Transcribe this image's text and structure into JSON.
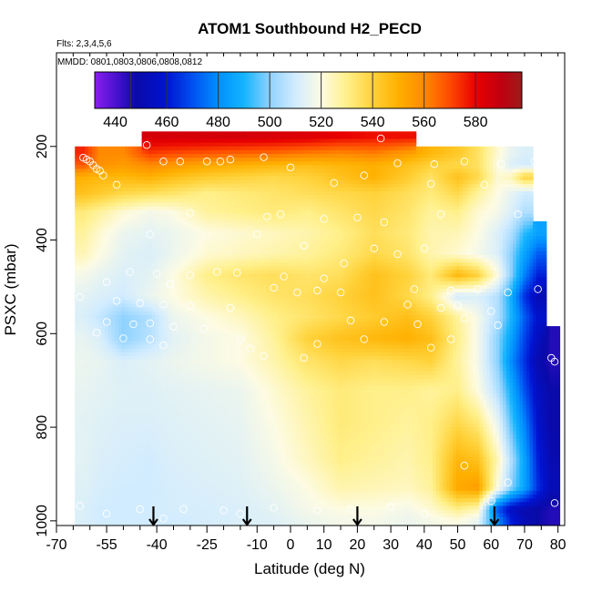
{
  "chart_data": {
    "type": "heatmap",
    "title": "ATOM1 Southbound H2_PECD",
    "notes": [
      "Flts: 2,3,4,5,6",
      "MMDD: 0801,0803,0806,0808,0812"
    ],
    "xlabel": "Latitude (deg N)",
    "ylabel": "PSXC (mbar)",
    "xlim": [
      -70,
      82
    ],
    "ylim": [
      1010,
      0
    ],
    "x_ticks": [
      -70,
      -55,
      -40,
      -25,
      -10,
      0,
      10,
      20,
      30,
      40,
      50,
      60,
      70,
      80
    ],
    "x_tick_labels": [
      "-70",
      "-55",
      "-40",
      "-25",
      "-10",
      "0",
      "10",
      "20",
      "30",
      "40",
      "50",
      "60",
      "70",
      "80"
    ],
    "x_minor_ticks": [
      -65,
      -60,
      -50,
      -45,
      -35,
      -30,
      -20,
      -15,
      -5,
      5,
      15,
      25,
      35,
      45,
      55,
      65,
      75
    ],
    "y_ticks": [
      200,
      400,
      600,
      800,
      1000
    ],
    "y_tick_labels": [
      "200",
      "400",
      "600",
      "800",
      "1000"
    ],
    "colorbar": {
      "range": [
        432,
        598
      ],
      "ticks": [
        440,
        460,
        480,
        500,
        520,
        540,
        560,
        580
      ],
      "tick_labels": [
        "440",
        "460",
        "480",
        "500",
        "520",
        "540",
        "560",
        "580"
      ],
      "boundaries": [
        432,
        446,
        460,
        480,
        500,
        520,
        540,
        560,
        580,
        598
      ],
      "colors": [
        {
          "v": 432,
          "c": "#8a1ef0"
        },
        {
          "v": 442,
          "c": "#3c0fc8"
        },
        {
          "v": 448,
          "c": "#0a0aa8"
        },
        {
          "v": 460,
          "c": "#0014d2"
        },
        {
          "v": 470,
          "c": "#0050f0"
        },
        {
          "v": 480,
          "c": "#0090ff"
        },
        {
          "v": 490,
          "c": "#14b4ff"
        },
        {
          "v": 500,
          "c": "#8fd2ff"
        },
        {
          "v": 510,
          "c": "#d2ecff"
        },
        {
          "v": 520,
          "c": "#fdfbe3"
        },
        {
          "v": 530,
          "c": "#fff08a"
        },
        {
          "v": 540,
          "c": "#ffd23a"
        },
        {
          "v": 550,
          "c": "#ffb000"
        },
        {
          "v": 560,
          "c": "#ff8a00"
        },
        {
          "v": 570,
          "c": "#ff4a00"
        },
        {
          "v": 580,
          "c": "#e80000"
        },
        {
          "v": 590,
          "c": "#c00010"
        },
        {
          "v": 598,
          "c": "#9b1c1c"
        }
      ]
    },
    "arrows_latitude": [
      -41,
      -13,
      20,
      61
    ],
    "field": {
      "levels_mbar": [
        180,
        215,
        240,
        265,
        300,
        340,
        385,
        430,
        475,
        520,
        565,
        610,
        660,
        720,
        790,
        870,
        930,
        975,
        1000
      ],
      "latitudes": [
        -62,
        -57,
        -50,
        -42,
        -35,
        -25,
        -15,
        -5,
        5,
        15,
        25,
        35,
        42,
        50,
        56,
        62,
        66,
        70,
        74,
        78
      ],
      "values": [
        [
          null,
          null,
          null,
          585,
          585,
          585,
          585,
          584,
          583,
          580,
          578,
          578,
          null,
          null,
          null,
          null,
          null,
          null,
          null,
          null
        ],
        [
          575,
          560,
          560,
          572,
          570,
          568,
          566,
          565,
          562,
          560,
          562,
          555,
          548,
          543,
          535,
          522,
          515,
          512,
          null,
          null
        ],
        [
          568,
          558,
          555,
          560,
          556,
          552,
          550,
          548,
          546,
          548,
          550,
          545,
          540,
          538,
          535,
          520,
          512,
          510,
          null,
          null
        ],
        [
          550,
          548,
          548,
          550,
          546,
          542,
          540,
          538,
          540,
          545,
          550,
          542,
          535,
          545,
          538,
          522,
          525,
          540,
          null,
          null
        ],
        [
          545,
          542,
          538,
          536,
          534,
          530,
          532,
          534,
          536,
          538,
          540,
          536,
          532,
          538,
          528,
          520,
          515,
          510,
          null,
          null
        ],
        [
          532,
          528,
          522,
          518,
          520,
          528,
          530,
          532,
          530,
          534,
          538,
          534,
          528,
          530,
          522,
          518,
          512,
          505,
          null,
          null
        ],
        [
          528,
          522,
          516,
          514,
          516,
          520,
          522,
          524,
          526,
          530,
          536,
          532,
          526,
          525,
          520,
          512,
          505,
          492,
          485,
          null
        ],
        [
          525,
          520,
          514,
          512,
          516,
          522,
          524,
          526,
          528,
          532,
          538,
          534,
          526,
          522,
          518,
          512,
          500,
          485,
          472,
          null
        ],
        [
          518,
          515,
          512,
          514,
          520,
          530,
          534,
          536,
          534,
          536,
          545,
          540,
          532,
          548,
          540,
          520,
          500,
          478,
          462,
          null
        ],
        [
          514,
          512,
          510,
          516,
          520,
          526,
          530,
          534,
          536,
          540,
          545,
          538,
          530,
          510,
          512,
          505,
          488,
          465,
          452,
          null
        ],
        [
          512,
          508,
          500,
          505,
          516,
          520,
          524,
          530,
          534,
          538,
          542,
          546,
          540,
          528,
          518,
          505,
          490,
          472,
          458,
          null
        ],
        [
          515,
          512,
          500,
          506,
          514,
          518,
          520,
          528,
          540,
          545,
          548,
          550,
          546,
          530,
          518,
          500,
          485,
          468,
          455,
          445
        ],
        [
          516,
          515,
          512,
          514,
          516,
          518,
          520,
          526,
          534,
          538,
          536,
          538,
          540,
          528,
          518,
          500,
          480,
          465,
          450,
          445
        ],
        [
          515,
          514,
          513,
          513,
          514,
          515,
          516,
          522,
          528,
          532,
          530,
          530,
          528,
          530,
          520,
          505,
          488,
          470,
          455,
          448
        ],
        [
          514,
          513,
          512,
          512,
          513,
          514,
          515,
          520,
          526,
          532,
          530,
          528,
          530,
          538,
          532,
          515,
          495,
          478,
          458,
          448
        ],
        [
          514,
          512,
          511,
          510,
          512,
          513,
          514,
          518,
          524,
          530,
          528,
          526,
          530,
          548,
          545,
          525,
          505,
          485,
          462,
          450
        ],
        [
          513,
          511,
          510,
          510,
          511,
          512,
          513,
          516,
          520,
          526,
          525,
          524,
          528,
          552,
          555,
          520,
          500,
          485,
          465,
          452
        ],
        [
          512,
          510,
          510,
          510,
          511,
          511,
          512,
          514,
          518,
          520,
          520,
          518,
          522,
          530,
          525,
          470,
          455,
          450,
          448,
          445
        ],
        [
          512,
          510,
          510,
          510,
          510,
          511,
          512,
          513,
          516,
          518,
          518,
          516,
          518,
          520,
          515,
          480,
          462,
          452,
          448,
          445
        ]
      ]
    },
    "samples": [
      {
        "lat": -62,
        "p": 224
      },
      {
        "lat": -61,
        "p": 228
      },
      {
        "lat": -60,
        "p": 232
      },
      {
        "lat": -59,
        "p": 240
      },
      {
        "lat": -58,
        "p": 248
      },
      {
        "lat": -57,
        "p": 252
      },
      {
        "lat": -56,
        "p": 262
      },
      {
        "lat": -52,
        "p": 282
      },
      {
        "lat": -43,
        "p": 197
      },
      {
        "lat": -38,
        "p": 232
      },
      {
        "lat": -33,
        "p": 232
      },
      {
        "lat": -25,
        "p": 232
      },
      {
        "lat": -21,
        "p": 232
      },
      {
        "lat": -18,
        "p": 228
      },
      {
        "lat": -8,
        "p": 223
      },
      {
        "lat": 0,
        "p": 245
      },
      {
        "lat": 27,
        "p": 183
      },
      {
        "lat": 32,
        "p": 236
      },
      {
        "lat": 43,
        "p": 238
      },
      {
        "lat": 52,
        "p": 232
      },
      {
        "lat": 63,
        "p": 238
      },
      {
        "lat": 73,
        "p": 232
      },
      {
        "lat": 13,
        "p": 278
      },
      {
        "lat": 22,
        "p": 262
      },
      {
        "lat": 42,
        "p": 280
      },
      {
        "lat": 58,
        "p": 282
      },
      {
        "lat": -30,
        "p": 342
      },
      {
        "lat": -7,
        "p": 350
      },
      {
        "lat": -3,
        "p": 345
      },
      {
        "lat": 10,
        "p": 355
      },
      {
        "lat": 20,
        "p": 352
      },
      {
        "lat": 28,
        "p": 362
      },
      {
        "lat": 45,
        "p": 345
      },
      {
        "lat": 68,
        "p": 345
      },
      {
        "lat": -42,
        "p": 388
      },
      {
        "lat": -10,
        "p": 388
      },
      {
        "lat": 4,
        "p": 412
      },
      {
        "lat": 25,
        "p": 418
      },
      {
        "lat": 32,
        "p": 430
      },
      {
        "lat": 40,
        "p": 418
      },
      {
        "lat": 16,
        "p": 450
      },
      {
        "lat": -48,
        "p": 468
      },
      {
        "lat": -40,
        "p": 472
      },
      {
        "lat": -55,
        "p": 490
      },
      {
        "lat": -30,
        "p": 475
      },
      {
        "lat": -22,
        "p": 468
      },
      {
        "lat": -16,
        "p": 470
      },
      {
        "lat": -2,
        "p": 478
      },
      {
        "lat": 10,
        "p": 482
      },
      {
        "lat": -36,
        "p": 495
      },
      {
        "lat": -5,
        "p": 502
      },
      {
        "lat": 8,
        "p": 508
      },
      {
        "lat": 2,
        "p": 512
      },
      {
        "lat": 15,
        "p": 512
      },
      {
        "lat": 37,
        "p": 505
      },
      {
        "lat": 48,
        "p": 508
      },
      {
        "lat": 56,
        "p": 505
      },
      {
        "lat": 65,
        "p": 512
      },
      {
        "lat": 74,
        "p": 505
      },
      {
        "lat": -63,
        "p": 522
      },
      {
        "lat": -52,
        "p": 530
      },
      {
        "lat": -45,
        "p": 535
      },
      {
        "lat": -38,
        "p": 538
      },
      {
        "lat": -30,
        "p": 540
      },
      {
        "lat": -18,
        "p": 545
      },
      {
        "lat": 35,
        "p": 538
      },
      {
        "lat": 45,
        "p": 545
      },
      {
        "lat": 50,
        "p": 540
      },
      {
        "lat": 60,
        "p": 552
      },
      {
        "lat": -55,
        "p": 575
      },
      {
        "lat": -47,
        "p": 580
      },
      {
        "lat": -42,
        "p": 578
      },
      {
        "lat": -35,
        "p": 585
      },
      {
        "lat": -26,
        "p": 590
      },
      {
        "lat": 18,
        "p": 572
      },
      {
        "lat": 28,
        "p": 575
      },
      {
        "lat": 38,
        "p": 580
      },
      {
        "lat": 52,
        "p": 568
      },
      {
        "lat": 62,
        "p": 582
      },
      {
        "lat": -58,
        "p": 598
      },
      {
        "lat": -50,
        "p": 610
      },
      {
        "lat": -42,
        "p": 612
      },
      {
        "lat": -15,
        "p": 612
      },
      {
        "lat": 8,
        "p": 622
      },
      {
        "lat": 22,
        "p": 612
      },
      {
        "lat": 48,
        "p": 612
      },
      {
        "lat": -38,
        "p": 625
      },
      {
        "lat": -12,
        "p": 632
      },
      {
        "lat": 42,
        "p": 630
      },
      {
        "lat": -8,
        "p": 648
      },
      {
        "lat": 4,
        "p": 652
      },
      {
        "lat": 78,
        "p": 652
      },
      {
        "lat": 79,
        "p": 660
      },
      {
        "lat": 52,
        "p": 882
      },
      {
        "lat": 65,
        "p": 918
      },
      {
        "lat": 60,
        "p": 958
      },
      {
        "lat": -63,
        "p": 968
      },
      {
        "lat": -45,
        "p": 975
      },
      {
        "lat": -32,
        "p": 975
      },
      {
        "lat": -20,
        "p": 978
      },
      {
        "lat": -5,
        "p": 972
      },
      {
        "lat": 8,
        "p": 978
      },
      {
        "lat": 18,
        "p": 975
      },
      {
        "lat": 30,
        "p": 970
      },
      {
        "lat": 79,
        "p": 962
      },
      {
        "lat": -55,
        "p": 985
      },
      {
        "lat": -38,
        "p": 995
      },
      {
        "lat": -15,
        "p": 985
      },
      {
        "lat": 40,
        "p": 985
      }
    ]
  }
}
